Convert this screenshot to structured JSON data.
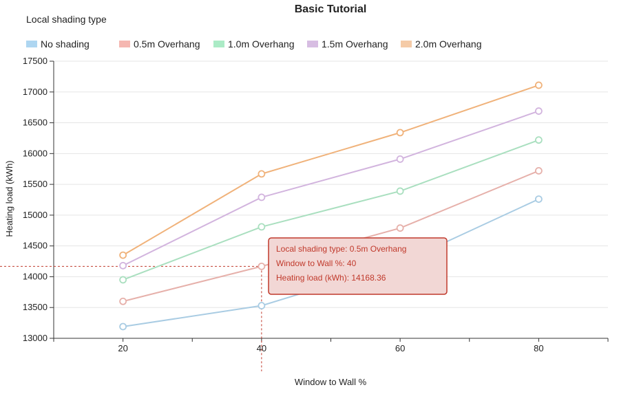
{
  "chart_data": {
    "type": "line",
    "title": "Basic Tutorial",
    "legend_title": "Local shading type",
    "xlabel": "Window to Wall %",
    "ylabel": "Heating load (kWh)",
    "x": [
      20,
      40,
      60,
      80
    ],
    "x_tick_labels": [
      "20",
      "40",
      "60",
      "80"
    ],
    "ylim": [
      13000,
      17500
    ],
    "y_ticks": [
      13000,
      13500,
      14000,
      14500,
      15000,
      15500,
      16000,
      16500,
      17000,
      17500
    ],
    "grid": "horizontal",
    "legend_placement": "top-left",
    "series": [
      {
        "name": "No shading",
        "color": "#a9cce3",
        "fill": "#aed6f1",
        "values": [
          13190,
          13530,
          14220,
          15260
        ]
      },
      {
        "name": "0.5m Overhang",
        "color": "#e6b0aa",
        "fill": "#f5b7b1",
        "values": [
          13600,
          14168.36,
          14790,
          15720
        ]
      },
      {
        "name": "1.0m Overhang",
        "color": "#a9dfbf",
        "fill": "#abebc6",
        "values": [
          13950,
          14810,
          15390,
          16220
        ]
      },
      {
        "name": "1.5m Overhang",
        "color": "#d2b4de",
        "fill": "#d7bde2",
        "values": [
          14180,
          15290,
          15910,
          16690
        ]
      },
      {
        "name": "2.0m Overhang",
        "color": "#f0b27a",
        "fill": "#f5cba7",
        "values": [
          14350,
          15670,
          16340,
          17110
        ]
      }
    ],
    "tooltip": {
      "series_index": 1,
      "point_index": 1,
      "color": "#c0392b",
      "bg": "#f2d7d5",
      "lines": [
        "Local shading type: 0.5m Overhang",
        "Window to Wall %: 40",
        "Heating load (kWh): 14168.36"
      ]
    }
  }
}
